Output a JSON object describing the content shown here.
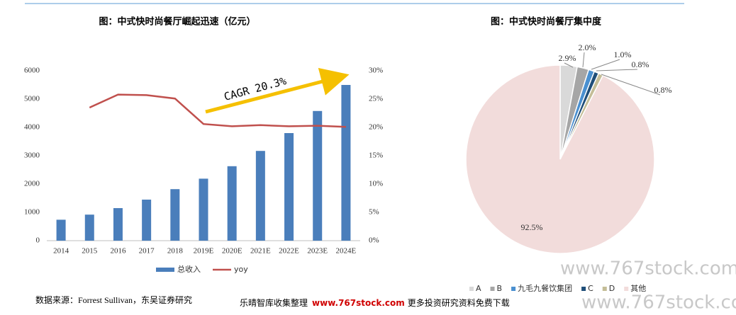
{
  "chart_data": [
    {
      "type": "combo",
      "title": "图：中式快时尚餐厅崛起迅速（亿元）",
      "categories": [
        "2014",
        "2015",
        "2016",
        "2017",
        "2018",
        "2019E",
        "2020E",
        "2021E",
        "2022E",
        "2023E",
        "2024E"
      ],
      "series": [
        {
          "name": "总收入",
          "type": "bar",
          "color": "#4a7ebb",
          "values": [
            740,
            920,
            1150,
            1450,
            1820,
            2190,
            2630,
            3170,
            3800,
            4580,
            5500
          ]
        },
        {
          "name": "yoy",
          "type": "line",
          "axis": "y2",
          "color": "#c0504d",
          "values": [
            null,
            23.5,
            25.8,
            25.7,
            25.1,
            20.6,
            20.2,
            20.4,
            20.2,
            20.3,
            20.1
          ]
        }
      ],
      "ylim": [
        0,
        6000
      ],
      "yticks": [
        0,
        1000,
        2000,
        3000,
        4000,
        5000,
        6000
      ],
      "y2lim": [
        0,
        30
      ],
      "y2ticks": [
        {
          "value": 0,
          "label": "0%"
        },
        {
          "value": 5,
          "label": "5%"
        },
        {
          "value": 10,
          "label": "10%"
        },
        {
          "value": 15,
          "label": "15%"
        },
        {
          "value": 20,
          "label": "20%"
        },
        {
          "value": 25,
          "label": "25%"
        },
        {
          "value": 30,
          "label": "30%"
        }
      ],
      "annotation": "CAGR 20.3%",
      "legend": "bottom"
    },
    {
      "type": "pie",
      "title": "图：中式快时尚餐厅集中度",
      "categories": [
        "A",
        "B",
        "九毛九餐饮集团",
        "C",
        "D",
        "其他"
      ],
      "values": [
        2.9,
        2.0,
        1.0,
        0.8,
        0.8,
        92.5
      ],
      "value_labels": [
        "2.9%",
        "2.0%",
        "1.0%",
        "0.8%",
        "0.8%",
        "92.5%"
      ],
      "colors": [
        "#d9d9d9",
        "#a6a6a6",
        "#4a90d0",
        "#1f4e79",
        "#c4bd97",
        "#f2dcdb"
      ],
      "legend": "bottom"
    }
  ],
  "source": "数据来源：Forrest Sullivan，东吴证券研究",
  "banner": {
    "left": "乐晴智库收集整理",
    "url": "www.767stock.com",
    "right": "更多投资研究资料免费下载"
  },
  "watermarks": [
    "www.767stock.com",
    "www.767stock.com"
  ]
}
